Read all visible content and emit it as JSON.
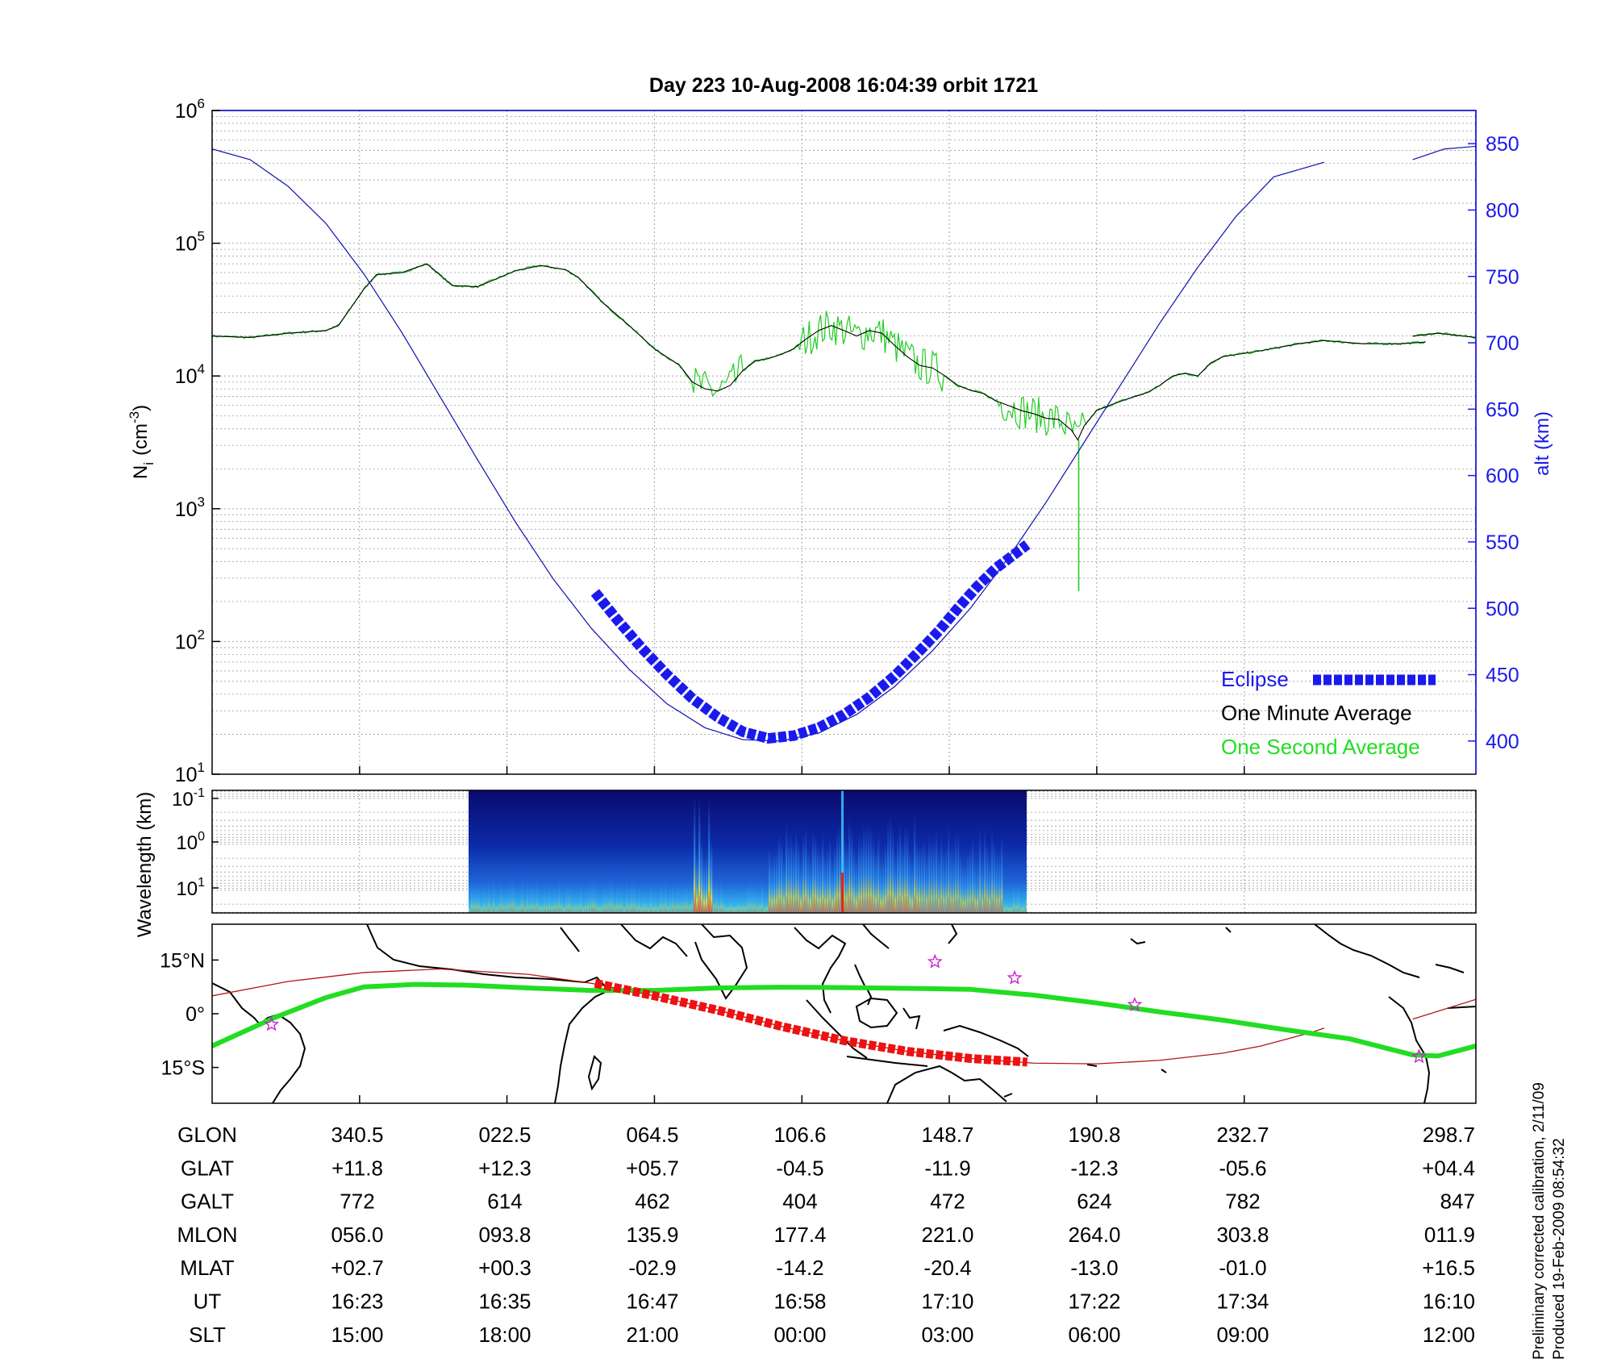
{
  "title": "Day 223  10-Aug-2008 16:04:39   orbit 1721",
  "colors": {
    "altitude": "#1010b0",
    "one_minute": "#000000",
    "one_second": "#22cc22",
    "eclipse": "#1a1aee",
    "ground_track": "#22dd22",
    "footprint": "#b01818",
    "footprint_eclipse": "#ee1111",
    "stars": "#cc22cc"
  },
  "chart_data": [
    {
      "type": "line",
      "name": "density",
      "ylabel": "N",
      "ylabel_sub": "i",
      "ylabel_unit": "(cm",
      "ylabel_unit_sup": "-3",
      "ylabel_unit_end": ")",
      "yscale": "log",
      "ylim": [
        10,
        1000000
      ],
      "yticks": [
        {
          "base": "10",
          "exp": "1"
        },
        {
          "base": "10",
          "exp": "2"
        },
        {
          "base": "10",
          "exp": "3"
        },
        {
          "base": "10",
          "exp": "4"
        },
        {
          "base": "10",
          "exp": "5"
        },
        {
          "base": "10",
          "exp": "6"
        }
      ],
      "y2label": "alt (km)",
      "y2lim": [
        375,
        875
      ],
      "y2ticks": [
        "400",
        "450",
        "500",
        "550",
        "600",
        "650",
        "700",
        "750",
        "800",
        "850"
      ],
      "xlim": [
        0,
        1
      ],
      "legend": [
        "Eclipse",
        "One Minute Average",
        "One Second Average"
      ],
      "legend_position": "bottom-right",
      "series": [
        {
          "name": "alt (km)",
          "axis": "right",
          "segments": [
            [
              [
                0.0,
                846
              ],
              [
                0.03,
                838
              ],
              [
                0.06,
                818
              ],
              [
                0.09,
                790
              ],
              [
                0.12,
                752
              ],
              [
                0.15,
                708
              ],
              [
                0.18,
                660
              ],
              [
                0.21,
                612
              ],
              [
                0.24,
                565
              ],
              [
                0.27,
                522
              ],
              [
                0.3,
                485
              ],
              [
                0.33,
                454
              ],
              [
                0.36,
                428
              ],
              [
                0.39,
                410
              ],
              [
                0.42,
                401
              ],
              [
                0.45,
                400
              ],
              [
                0.48,
                406
              ],
              [
                0.51,
                420
              ],
              [
                0.54,
                441
              ],
              [
                0.57,
                468
              ],
              [
                0.6,
                500
              ],
              [
                0.63,
                538
              ],
              [
                0.66,
                580
              ],
              [
                0.69,
                625
              ],
              [
                0.72,
                670
              ],
              [
                0.75,
                715
              ],
              [
                0.78,
                757
              ],
              [
                0.81,
                795
              ],
              [
                0.84,
                825
              ],
              [
                0.88,
                836
              ]
            ],
            [
              [
                0.95,
                838
              ],
              [
                0.975,
                846
              ],
              [
                1.0,
                848
              ]
            ]
          ]
        },
        {
          "name": "Eclipse",
          "axis": "right",
          "x": [
            0.303,
            0.32,
            0.34,
            0.36,
            0.38,
            0.4,
            0.42,
            0.44,
            0.46,
            0.48,
            0.5,
            0.52,
            0.54,
            0.56,
            0.575,
            0.59,
            0.605,
            0.62,
            0.645
          ],
          "y": [
            512,
            492,
            470,
            450,
            432,
            418,
            407,
            402,
            404,
            410,
            420,
            433,
            449,
            468,
            483,
            500,
            516,
            530,
            548
          ]
        },
        {
          "name": "One Minute Average",
          "axis": "left",
          "segments": [
            [
              [
                0.0,
                20000
              ],
              [
                0.03,
                19500
              ],
              [
                0.06,
                21000
              ],
              [
                0.09,
                22000
              ],
              [
                0.1,
                24000
              ],
              [
                0.12,
                45000
              ],
              [
                0.13,
                58000
              ],
              [
                0.15,
                60000
              ],
              [
                0.17,
                70000
              ],
              [
                0.19,
                48000
              ],
              [
                0.21,
                47000
              ],
              [
                0.24,
                62000
              ],
              [
                0.26,
                68000
              ],
              [
                0.28,
                63000
              ],
              [
                0.29,
                55000
              ],
              [
                0.31,
                35000
              ],
              [
                0.33,
                24000
              ],
              [
                0.35,
                16000
              ],
              [
                0.37,
                12000
              ],
              [
                0.38,
                9000
              ],
              [
                0.39,
                8000
              ],
              [
                0.4,
                7700
              ],
              [
                0.41,
                8500
              ],
              [
                0.42,
                11000
              ],
              [
                0.43,
                13000
              ],
              [
                0.44,
                13500
              ],
              [
                0.45,
                14500
              ],
              [
                0.46,
                16000
              ],
              [
                0.47,
                19000
              ],
              [
                0.48,
                22000
              ],
              [
                0.49,
                24000
              ],
              [
                0.5,
                22000
              ],
              [
                0.51,
                20000
              ],
              [
                0.52,
                22000
              ],
              [
                0.53,
                21000
              ],
              [
                0.54,
                17000
              ],
              [
                0.55,
                14000
              ],
              [
                0.56,
                12000
              ],
              [
                0.57,
                11500
              ],
              [
                0.58,
                10000
              ],
              [
                0.59,
                8500
              ],
              [
                0.6,
                7800
              ],
              [
                0.61,
                7400
              ],
              [
                0.62,
                6500
              ],
              [
                0.63,
                6000
              ],
              [
                0.64,
                5500
              ],
              [
                0.65,
                5200
              ],
              [
                0.66,
                4800
              ],
              [
                0.67,
                4700
              ],
              [
                0.68,
                3900
              ],
              [
                0.685,
                3300
              ],
              [
                0.69,
                4200
              ],
              [
                0.7,
                5500
              ],
              [
                0.71,
                6000
              ],
              [
                0.72,
                6500
              ],
              [
                0.73,
                7000
              ],
              [
                0.74,
                7500
              ],
              [
                0.75,
                8500
              ],
              [
                0.76,
                10000
              ],
              [
                0.77,
                10500
              ],
              [
                0.78,
                10000
              ],
              [
                0.79,
                12500
              ],
              [
                0.8,
                14000
              ],
              [
                0.83,
                15500
              ],
              [
                0.86,
                17500
              ],
              [
                0.88,
                18500
              ],
              [
                0.91,
                17500
              ],
              [
                0.94,
                17500
              ],
              [
                0.96,
                18000
              ]
            ],
            [
              [
                0.95,
                20000
              ],
              [
                0.97,
                21000
              ],
              [
                0.99,
                20000
              ],
              [
                1.0,
                19500
              ]
            ]
          ]
        }
      ]
    },
    {
      "type": "heatmap",
      "name": "wavelength spectrogram",
      "ylabel": "Wavelength (km)",
      "yscale": "log",
      "yticks": [
        {
          "base": "10",
          "exp": "-1"
        },
        {
          "base": "10",
          "exp": "0"
        },
        {
          "base": "10",
          "exp": "1"
        }
      ],
      "x_range": [
        0.203,
        0.645
      ]
    },
    {
      "type": "line",
      "name": "ground track map",
      "yticks": [
        "15°N",
        "0°",
        "15°S"
      ],
      "ylim": [
        -25,
        25
      ],
      "series": [
        {
          "name": "ground track",
          "x": [
            0.0,
            0.05,
            0.09,
            0.12,
            0.16,
            0.2,
            0.25,
            0.3,
            0.35,
            0.4,
            0.45,
            0.5,
            0.55,
            0.6,
            0.65,
            0.7,
            0.75,
            0.8,
            0.85,
            0.9,
            0.95,
            0.97,
            1.0
          ],
          "y": [
            -9,
            -1,
            4.5,
            7.5,
            8.2,
            8.0,
            7.2,
            6.5,
            6.5,
            7.2,
            7.4,
            7.3,
            7.1,
            6.8,
            5.2,
            3.0,
            0.5,
            -1.8,
            -4.5,
            -7,
            -11.5,
            -11.8,
            -9
          ]
        },
        {
          "name": "footprint",
          "x": [
            0.0,
            0.06,
            0.12,
            0.18,
            0.25,
            0.3,
            0.35,
            0.4,
            0.45,
            0.5,
            0.55,
            0.6,
            0.65,
            0.7,
            0.75,
            0.8,
            0.83,
            0.87,
            0.88
          ],
          "y": [
            5,
            9,
            11.5,
            12.5,
            11,
            8.5,
            5,
            1,
            -3.5,
            -7.5,
            -10.5,
            -12.5,
            -13.8,
            -14,
            -13,
            -11,
            -9,
            -5.2,
            -4
          ]
        },
        {
          "name": "footprint right",
          "x": [
            0.95,
            1.0
          ],
          "y": [
            -1.5,
            4
          ]
        },
        {
          "name": "footprint eclipse",
          "x": [
            0.303,
            0.35,
            0.4,
            0.45,
            0.5,
            0.55,
            0.6,
            0.645
          ],
          "y": [
            8.5,
            5,
            1,
            -3.5,
            -7.5,
            -10.5,
            -12.5,
            -13.5
          ]
        },
        {
          "name": "stars",
          "x": [
            0.047,
            0.572,
            0.635,
            0.73,
            0.955
          ],
          "y": [
            -3,
            14.5,
            10,
            2.5,
            -12
          ]
        }
      ]
    }
  ],
  "table": {
    "rows": [
      {
        "label": "GLON",
        "values": [
          "340.5",
          "022.5",
          "064.5",
          "106.6",
          "148.7",
          "190.8",
          "232.7",
          "298.7"
        ]
      },
      {
        "label": "GLAT",
        "values": [
          "+11.8",
          "+12.3",
          "+05.7",
          "-04.5",
          "-11.9",
          "-12.3",
          "-05.6",
          "+04.4"
        ]
      },
      {
        "label": "GALT",
        "values": [
          "772",
          "614",
          "462",
          "404",
          "472",
          "624",
          "782",
          "847"
        ]
      },
      {
        "label": "MLON",
        "values": [
          "056.0",
          "093.8",
          "135.9",
          "177.4",
          "221.0",
          "264.0",
          "303.8",
          "011.9"
        ]
      },
      {
        "label": "MLAT",
        "values": [
          "+02.7",
          "+00.3",
          "-02.9",
          "-14.2",
          "-20.4",
          "-13.0",
          "-01.0",
          "+16.5"
        ]
      },
      {
        "label": "UT",
        "values": [
          "16:23",
          "16:35",
          "16:47",
          "16:58",
          "17:10",
          "17:22",
          "17:34",
          "16:10"
        ]
      },
      {
        "label": "SLT",
        "values": [
          "15:00",
          "18:00",
          "21:00",
          "00:00",
          "03:00",
          "06:00",
          "09:00",
          "12:00"
        ]
      }
    ]
  },
  "footnote": {
    "line1": "Preliminary corrected calibration, 2/11/09",
    "line2": "Produced 19-Feb-2009 08:54:32"
  }
}
